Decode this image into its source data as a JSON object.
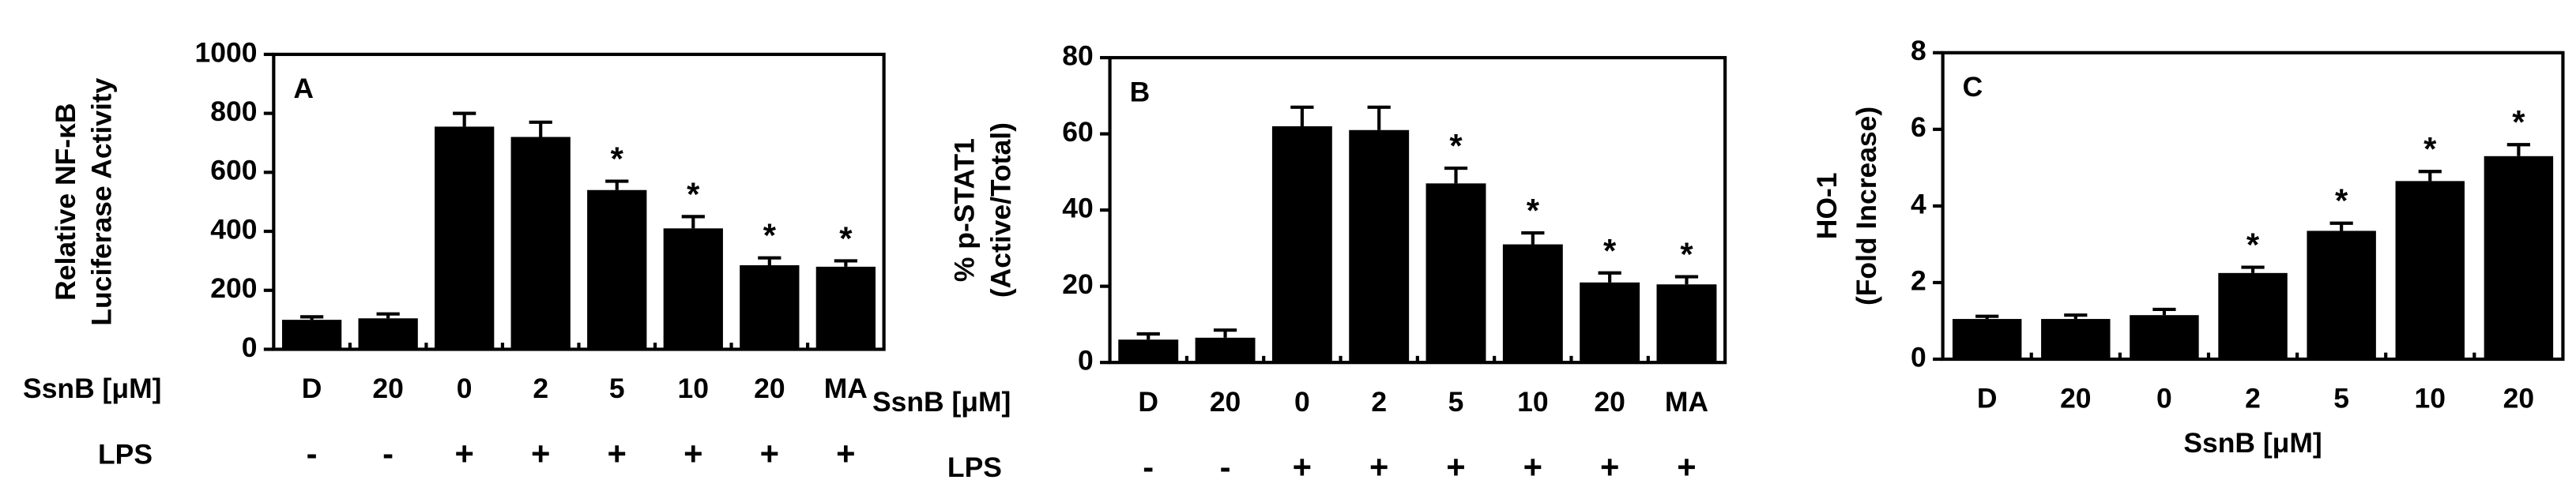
{
  "chart_data": [
    {
      "type": "bar",
      "panel": "A",
      "ylabel": [
        "Relative NF-κB",
        "Luciferase Activity"
      ],
      "categories": [
        "D",
        "20",
        "0",
        "2",
        "5",
        "10",
        "20",
        "MA"
      ],
      "values": [
        100,
        105,
        755,
        720,
        540,
        410,
        285,
        280
      ],
      "errors": [
        10,
        15,
        45,
        50,
        30,
        40,
        25,
        20
      ],
      "stars": [
        null,
        null,
        null,
        null,
        "*",
        "*",
        "*",
        "*"
      ],
      "category_label": "SsnB [μM]",
      "lps": {
        "label": "LPS",
        "values": [
          "-",
          "-",
          "+",
          "+",
          "+",
          "+",
          "+",
          "+"
        ]
      },
      "ylim": [
        0,
        1000
      ],
      "yticks": [
        0,
        200,
        400,
        600,
        800,
        1000
      ],
      "color": "#000000"
    },
    {
      "type": "bar",
      "panel": "B",
      "ylabel": [
        "% p-STAT1",
        "(Active/Total)"
      ],
      "categories": [
        "D",
        "20",
        "0",
        "2",
        "5",
        "10",
        "20",
        "MA"
      ],
      "values": [
        6,
        6.5,
        62,
        61,
        47,
        31,
        21,
        20.5
      ],
      "errors": [
        1.5,
        2,
        5,
        6,
        4,
        3,
        2.5,
        2
      ],
      "stars": [
        null,
        null,
        null,
        null,
        "*",
        "*",
        "*",
        "*"
      ],
      "category_label": "SsnB [μM]",
      "lps": {
        "label": "LPS",
        "values": [
          "-",
          "-",
          "+",
          "+",
          "+",
          "+",
          "+",
          "+"
        ]
      },
      "ylim": [
        0,
        80
      ],
      "yticks": [
        0,
        20,
        40,
        60,
        80
      ],
      "color": "#000000"
    },
    {
      "type": "bar",
      "panel": "C",
      "ylabel": [
        "HO-1",
        "(Fold Increase)"
      ],
      "categories": [
        "D",
        "20",
        "0",
        "2",
        "5",
        "10",
        "20"
      ],
      "values": [
        1.05,
        1.05,
        1.15,
        2.25,
        3.35,
        4.65,
        5.3
      ],
      "errors": [
        0.07,
        0.1,
        0.15,
        0.15,
        0.2,
        0.25,
        0.3
      ],
      "stars": [
        null,
        null,
        null,
        "*",
        "*",
        "*",
        "*"
      ],
      "xlabel": "SsnB [μM]",
      "ylim": [
        0,
        8
      ],
      "yticks": [
        0,
        2,
        4,
        6,
        8
      ],
      "color": "#000000"
    }
  ]
}
